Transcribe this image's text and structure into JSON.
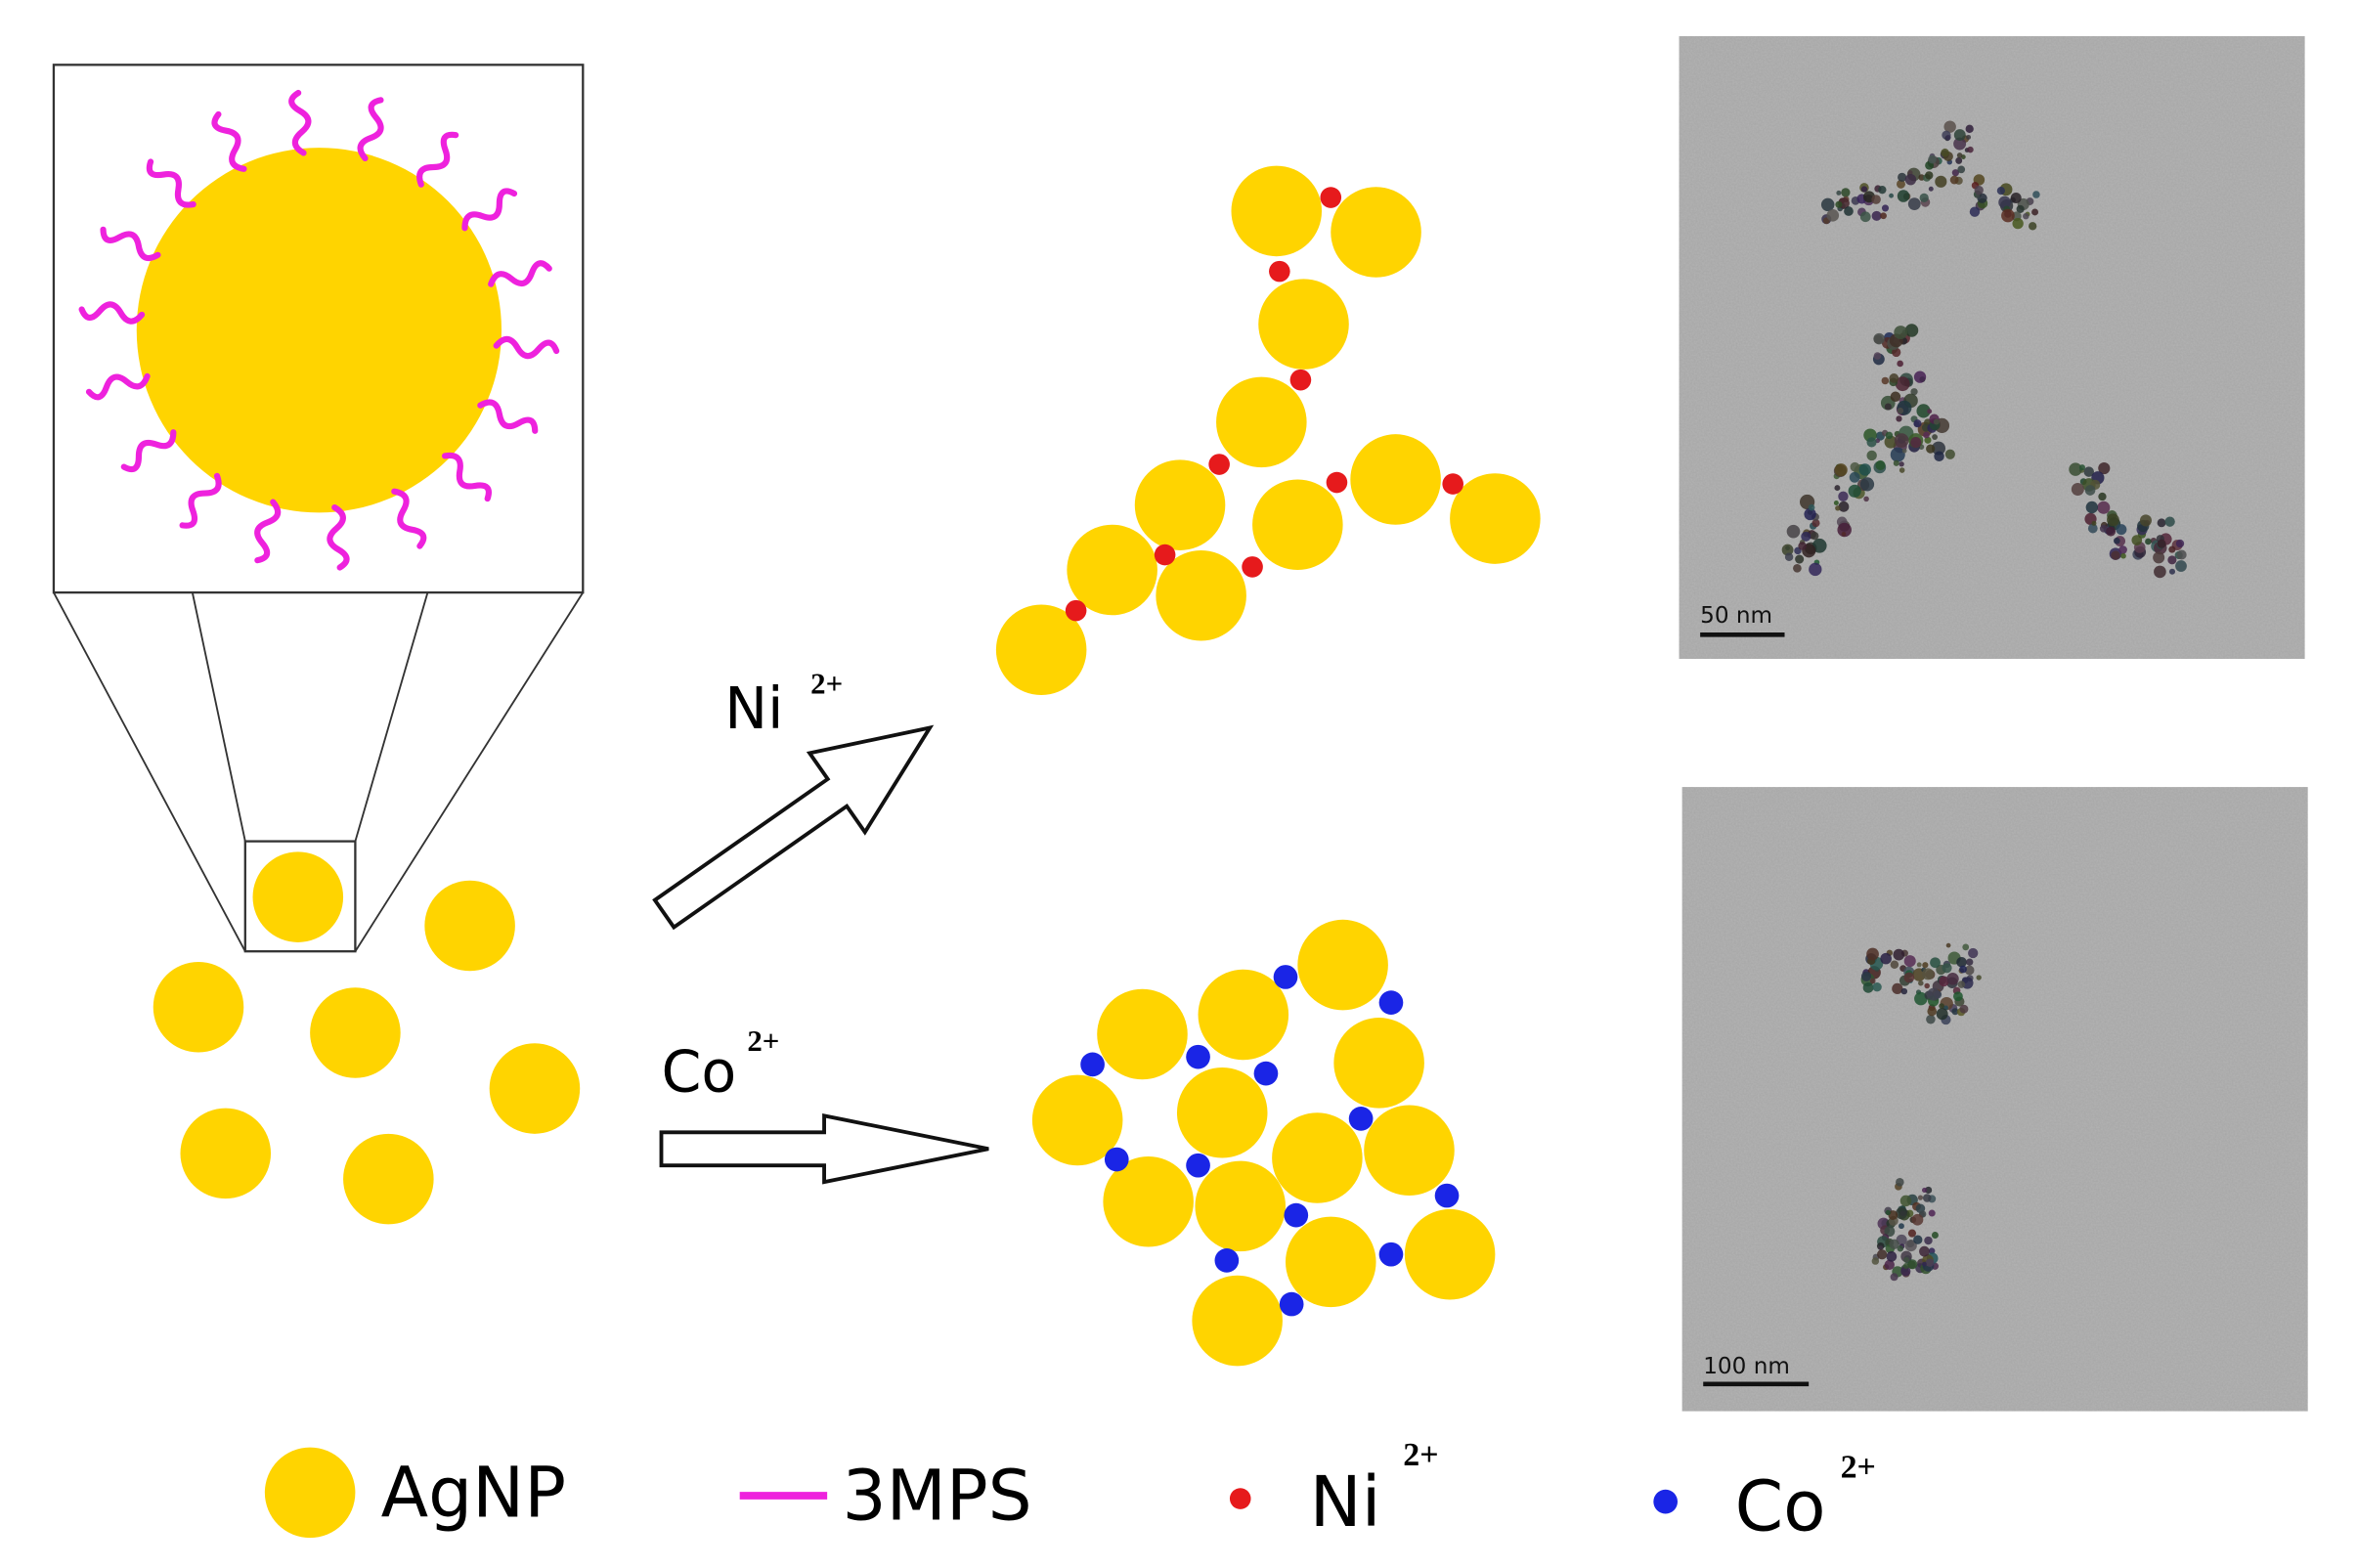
{
  "reaction_labels": [
    {
      "ion": "Ni",
      "charge": "2+"
    },
    {
      "ion": "Co",
      "charge": "2+"
    }
  ],
  "tem_images": [
    {
      "scale_bar": "50 nm"
    },
    {
      "scale_bar": "100 nm"
    }
  ],
  "legend": [
    {
      "label": "AgNP"
    },
    {
      "label": "3MPS"
    },
    {
      "label": "Ni",
      "superscript": "2+"
    },
    {
      "label": "Co",
      "superscript": "2+"
    }
  ]
}
